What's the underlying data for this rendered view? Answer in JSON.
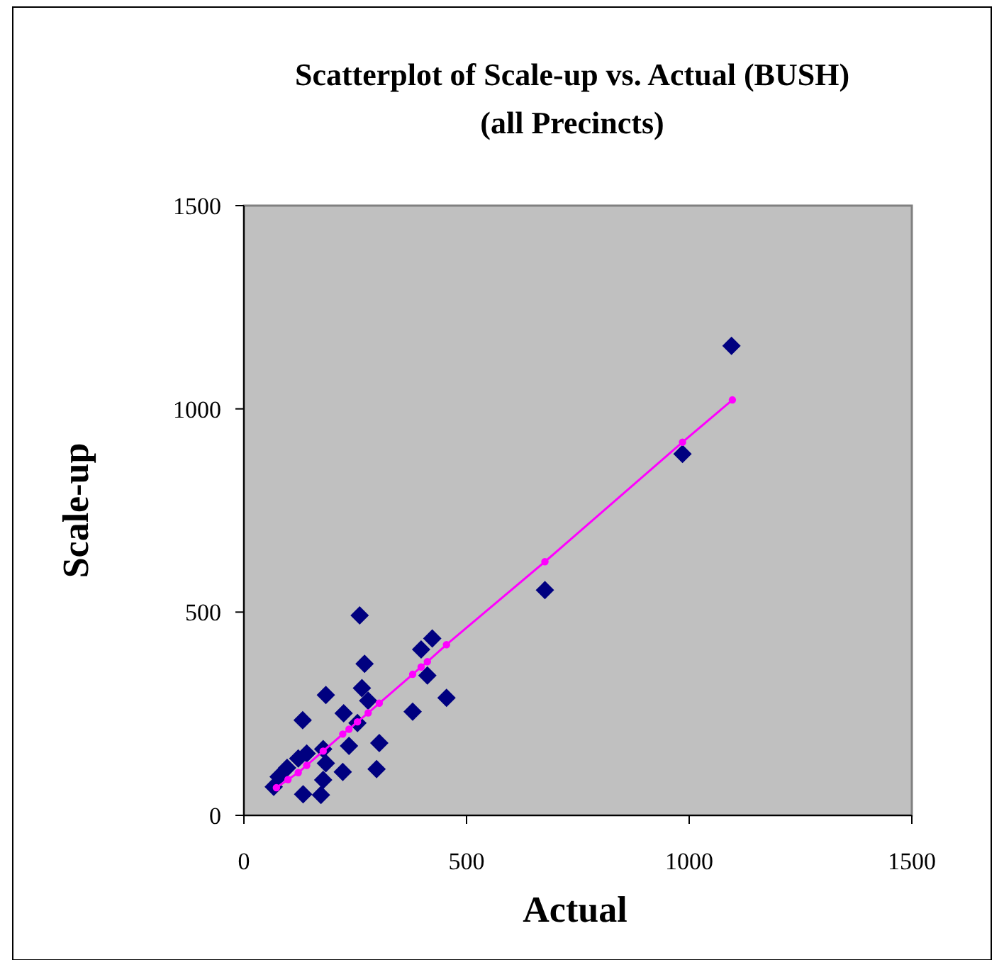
{
  "chart_data": {
    "type": "scatter",
    "title": "Scatterplot of Scale-up vs. Actual (BUSH)\n(all Precincts)",
    "xlabel": "Actual",
    "ylabel": "Scale-up",
    "xlim": [
      0,
      1500
    ],
    "ylim": [
      0,
      1500
    ],
    "xticks": [
      0,
      500,
      1000,
      1500
    ],
    "yticks": [
      0,
      500,
      1000,
      1500
    ],
    "grid": false,
    "series": [
      {
        "marker": "diamond",
        "color": "#000080",
        "x": [
          260,
          423,
          398,
          271,
          412,
          265,
          184,
          455,
          279,
          224,
          379,
          132,
          255,
          236,
          304,
          141,
          178,
          97,
          184,
          222,
          298,
          178,
          67,
          133,
          173,
          122,
          78,
          676,
          985,
          1095
        ],
        "values": [
          492,
          435,
          408,
          373,
          344,
          313,
          296,
          289,
          282,
          251,
          255,
          234,
          227,
          171,
          178,
          152,
          163,
          117,
          128,
          107,
          114,
          87,
          70,
          52,
          50,
          140,
          95,
          554,
          889,
          1155
        ]
      },
      {
        "type": "line",
        "marker": "circle",
        "color": "#ff00ff",
        "x": [
          73,
          99,
          122,
          141,
          178,
          222,
          236,
          255,
          279,
          304,
          379,
          398,
          412,
          455,
          676,
          985,
          1097
        ],
        "values": [
          68,
          88,
          105,
          123,
          158,
          200,
          212,
          230,
          252,
          276,
          347,
          365,
          378,
          420,
          624,
          918,
          1022
        ]
      }
    ]
  }
}
